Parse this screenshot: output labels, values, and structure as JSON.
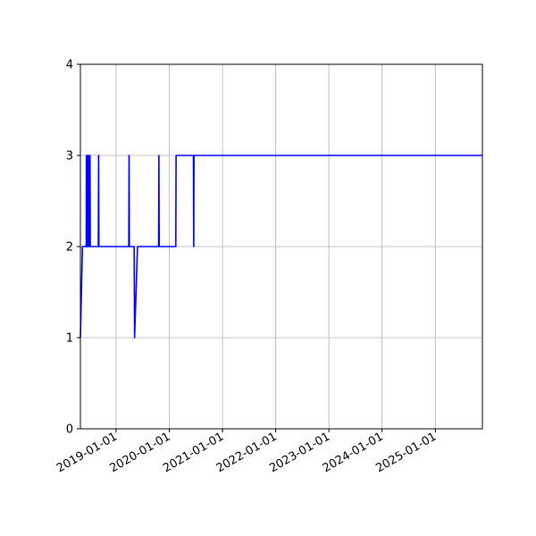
{
  "chart_data": {
    "type": "line",
    "title": "",
    "xlabel": "",
    "ylabel": "",
    "x_axis_type": "date",
    "xlim": [
      "2018-05-01",
      "2025-11-20"
    ],
    "ylim": [
      0,
      4
    ],
    "grid": true,
    "legend": "none",
    "x_ticks": [
      "2019-01-01",
      "2020-01-01",
      "2021-01-01",
      "2022-01-01",
      "2023-01-01",
      "2024-01-01",
      "2025-01-01"
    ],
    "y_ticks": [
      0,
      1,
      2,
      3,
      4
    ],
    "series": [
      {
        "name": "",
        "color": "#0000ff",
        "points": [
          [
            "2018-05-01",
            1
          ],
          [
            "2018-05-15",
            2
          ],
          [
            "2018-06-10",
            2
          ],
          [
            "2018-06-11",
            3
          ],
          [
            "2018-06-13",
            2
          ],
          [
            "2018-06-16",
            3
          ],
          [
            "2018-06-18",
            2
          ],
          [
            "2018-06-21",
            3
          ],
          [
            "2018-06-23",
            2
          ],
          [
            "2018-06-26",
            3
          ],
          [
            "2018-06-28",
            2
          ],
          [
            "2018-07-01",
            3
          ],
          [
            "2018-07-03",
            2
          ],
          [
            "2018-07-06",
            3
          ],
          [
            "2018-07-08",
            2
          ],
          [
            "2018-09-01",
            2
          ],
          [
            "2018-09-03",
            3
          ],
          [
            "2018-09-05",
            2
          ],
          [
            "2019-03-29",
            2
          ],
          [
            "2019-03-31",
            3
          ],
          [
            "2019-04-02",
            2
          ],
          [
            "2019-05-05",
            2
          ],
          [
            "2019-05-08",
            1
          ],
          [
            "2019-05-28",
            2
          ],
          [
            "2019-10-20",
            2
          ],
          [
            "2019-10-22",
            3
          ],
          [
            "2019-10-24",
            2
          ],
          [
            "2020-02-15",
            2
          ],
          [
            "2020-02-17",
            3
          ],
          [
            "2020-06-15",
            3
          ],
          [
            "2020-06-17",
            2
          ],
          [
            "2020-06-19",
            3
          ],
          [
            "2025-11-20",
            3
          ]
        ]
      }
    ]
  }
}
